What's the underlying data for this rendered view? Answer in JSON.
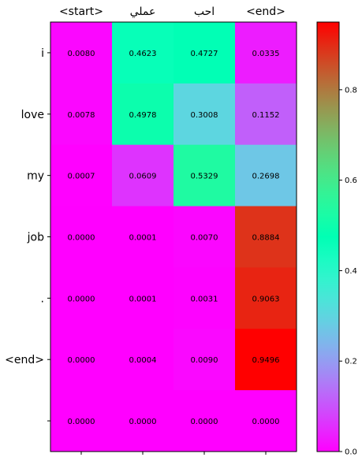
{
  "chart_data": {
    "type": "heatmap",
    "colormap": "rainbow",
    "x_tick_labels": [
      "<start>",
      "عملي",
      "احب",
      "<end>"
    ],
    "y_tick_labels": [
      "i",
      "love",
      "my",
      "job",
      ".",
      "<end>",
      ""
    ],
    "values": [
      [
        0.008,
        0.4623,
        0.4727,
        0.0335
      ],
      [
        0.0078,
        0.4978,
        0.3008,
        0.1152
      ],
      [
        0.0007,
        0.0609,
        0.5329,
        0.2698
      ],
      [
        0.0,
        0.0001,
        0.007,
        0.8884
      ],
      [
        0.0,
        0.0001,
        0.0031,
        0.9063
      ],
      [
        0.0,
        0.0004,
        0.009,
        0.9496
      ],
      [
        0.0,
        0.0,
        0.0,
        0.0
      ]
    ],
    "value_labels": [
      [
        "0.0080",
        "0.4623",
        "0.4727",
        "0.0335"
      ],
      [
        "0.0078",
        "0.4978",
        "0.3008",
        "0.1152"
      ],
      [
        "0.0007",
        "0.0609",
        "0.5329",
        "0.2698"
      ],
      [
        "0.0000",
        "0.0001",
        "0.0070",
        "0.8884"
      ],
      [
        "0.0000",
        "0.0001",
        "0.0031",
        "0.9063"
      ],
      [
        "0.0000",
        "0.0004",
        "0.0090",
        "0.9496"
      ],
      [
        "0.0000",
        "0.0000",
        "0.0000",
        "0.0000"
      ]
    ],
    "colorbar": {
      "range": [
        0,
        0.9496
      ],
      "ticks": [
        0.0,
        0.2,
        0.4,
        0.6,
        0.8
      ],
      "tick_labels": [
        "0.0",
        "0.2",
        "0.4",
        "0.6",
        "0.8"
      ]
    },
    "x_tick_position": "top",
    "grid": false
  }
}
